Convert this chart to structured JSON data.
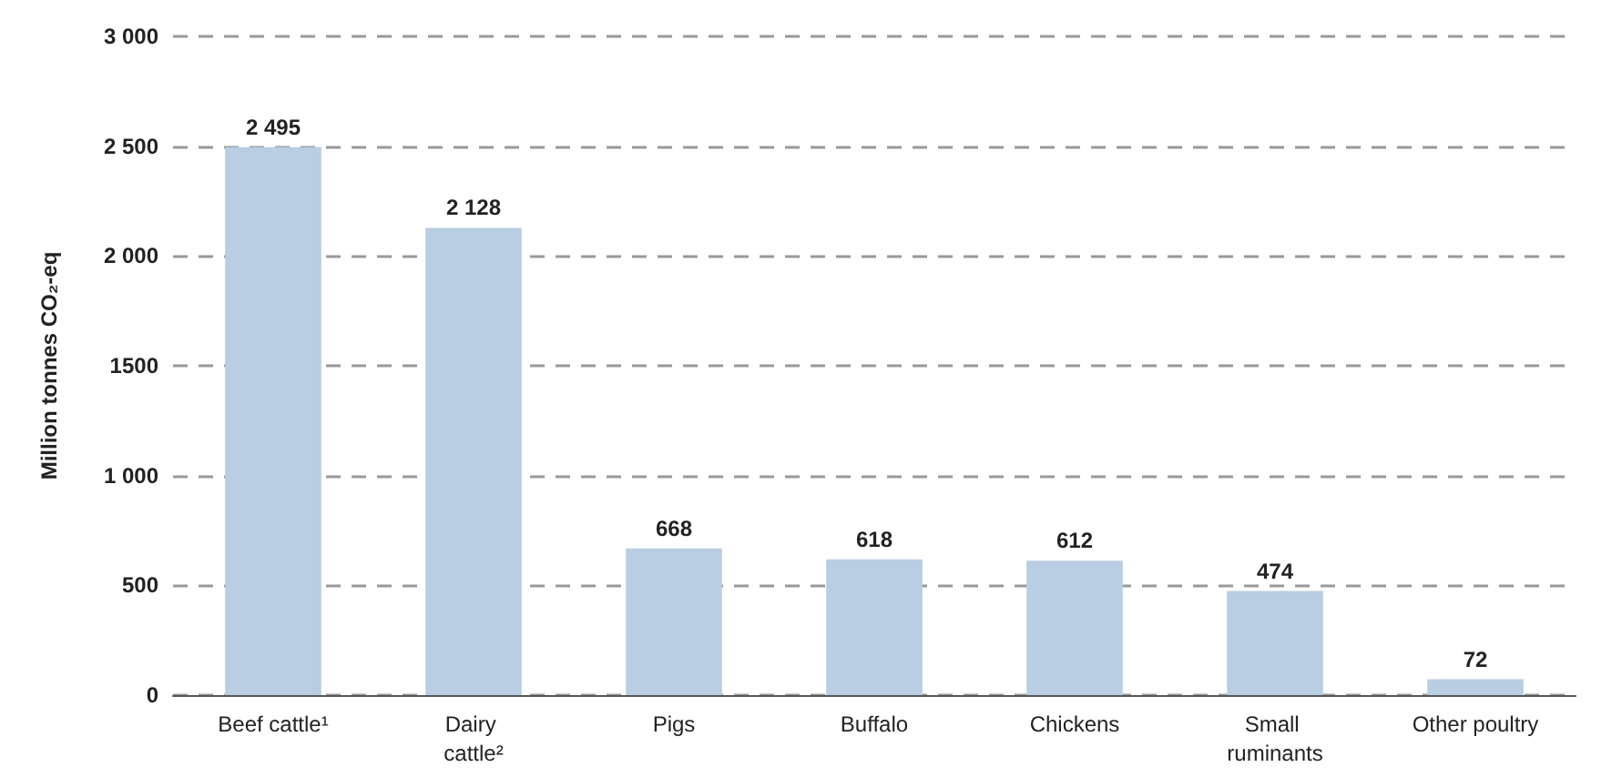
{
  "chart_data": {
    "type": "bar",
    "ylabel": "Million tonnes CO₂-eq",
    "categories": [
      "Beef cattle¹",
      "Dairy cattle²",
      "Pigs",
      "Buffalo",
      "Chickens",
      "Small ruminants",
      "Other poultry"
    ],
    "values": [
      2495,
      2128,
      668,
      618,
      612,
      474,
      72
    ],
    "value_labels": [
      "2 495",
      "2 128",
      "668",
      "618",
      "612",
      "474",
      "72"
    ],
    "color": "#b9cde3",
    "ylim": [
      0,
      3000
    ],
    "yticks": [
      0,
      500,
      {
        "value": 1000,
        "label": "1 000"
      },
      1500,
      {
        "value": 2000,
        "label": "2 000"
      },
      {
        "value": 2500,
        "label": "2 500"
      },
      {
        "value": 3000,
        "label": "3 000"
      }
    ],
    "grid": "y",
    "line_style": "dashed"
  }
}
